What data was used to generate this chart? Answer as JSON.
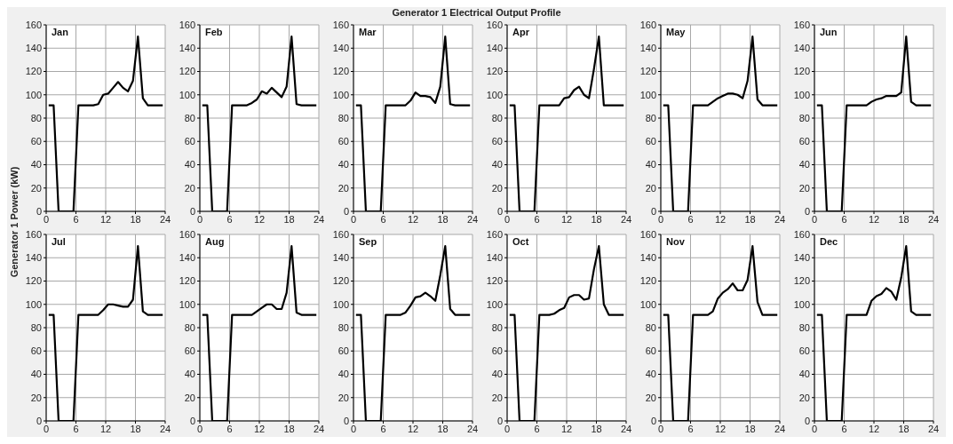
{
  "chart_data": [
    {
      "type": "line",
      "title": "Jan",
      "annotations": [
        "Generator 1 Electrical Output Profile"
      ],
      "ylabel": "Generator 1 Power (kW)",
      "x": [
        0.5,
        1.5,
        2.5,
        3.5,
        4.5,
        5.5,
        6.5,
        7.5,
        8.5,
        9.5,
        10.5,
        11.5,
        12.5,
        13.5,
        14.5,
        15.5,
        16.5,
        17.5,
        18.5,
        19.5,
        20.5,
        21.5,
        22.5,
        23.5
      ],
      "values": [
        91,
        91,
        0,
        0,
        0,
        0,
        91,
        91,
        91,
        91,
        92,
        100,
        101,
        106,
        111,
        106,
        103,
        112,
        150,
        97,
        91,
        91,
        91,
        91
      ],
      "color": "#000000",
      "xlim": [
        0,
        24
      ],
      "xticks": [
        0,
        6,
        12,
        18,
        24
      ],
      "ylim": [
        0,
        160
      ],
      "yticks": [
        0,
        20,
        40,
        60,
        80,
        100,
        120,
        140,
        160
      ],
      "grid": true
    },
    {
      "type": "line",
      "title": "Feb",
      "x": [
        0.5,
        1.5,
        2.5,
        3.5,
        4.5,
        5.5,
        6.5,
        7.5,
        8.5,
        9.5,
        10.5,
        11.5,
        12.5,
        13.5,
        14.5,
        15.5,
        16.5,
        17.5,
        18.5,
        19.5,
        20.5,
        21.5,
        22.5,
        23.5
      ],
      "values": [
        91,
        91,
        0,
        0,
        0,
        0,
        91,
        91,
        91,
        91,
        93,
        96,
        103,
        101,
        106,
        102,
        98,
        107,
        150,
        92,
        91,
        91,
        91,
        91
      ],
      "color": "#000000",
      "xlim": [
        0,
        24
      ],
      "xticks": [
        0,
        6,
        12,
        18,
        24
      ],
      "ylim": [
        0,
        160
      ],
      "yticks": [
        0,
        20,
        40,
        60,
        80,
        100,
        120,
        140,
        160
      ],
      "grid": true
    },
    {
      "type": "line",
      "title": "Mar",
      "x": [
        0.5,
        1.5,
        2.5,
        3.5,
        4.5,
        5.5,
        6.5,
        7.5,
        8.5,
        9.5,
        10.5,
        11.5,
        12.5,
        13.5,
        14.5,
        15.5,
        16.5,
        17.5,
        18.5,
        19.5,
        20.5,
        21.5,
        22.5,
        23.5
      ],
      "values": [
        91,
        91,
        0,
        0,
        0,
        0,
        91,
        91,
        91,
        91,
        91,
        95,
        102,
        99,
        99,
        98,
        93,
        107,
        150,
        92,
        91,
        91,
        91,
        91
      ],
      "color": "#000000",
      "xlim": [
        0,
        24
      ],
      "xticks": [
        0,
        6,
        12,
        18,
        24
      ],
      "ylim": [
        0,
        160
      ],
      "yticks": [
        0,
        20,
        40,
        60,
        80,
        100,
        120,
        140,
        160
      ],
      "grid": true
    },
    {
      "type": "line",
      "title": "Apr",
      "x": [
        0.5,
        1.5,
        2.5,
        3.5,
        4.5,
        5.5,
        6.5,
        7.5,
        8.5,
        9.5,
        10.5,
        11.5,
        12.5,
        13.5,
        14.5,
        15.5,
        16.5,
        17.5,
        18.5,
        19.5,
        20.5,
        21.5,
        22.5,
        23.5
      ],
      "values": [
        91,
        91,
        0,
        0,
        0,
        0,
        91,
        91,
        91,
        91,
        91,
        97,
        98,
        104,
        107,
        100,
        97,
        122,
        150,
        91,
        91,
        91,
        91,
        91
      ],
      "color": "#000000",
      "xlim": [
        0,
        24
      ],
      "xticks": [
        0,
        6,
        12,
        18,
        24
      ],
      "ylim": [
        0,
        160
      ],
      "yticks": [
        0,
        20,
        40,
        60,
        80,
        100,
        120,
        140,
        160
      ],
      "grid": true
    },
    {
      "type": "line",
      "title": "May",
      "x": [
        0.5,
        1.5,
        2.5,
        3.5,
        4.5,
        5.5,
        6.5,
        7.5,
        8.5,
        9.5,
        10.5,
        11.5,
        12.5,
        13.5,
        14.5,
        15.5,
        16.5,
        17.5,
        18.5,
        19.5,
        20.5,
        21.5,
        22.5,
        23.5
      ],
      "values": [
        91,
        91,
        0,
        0,
        0,
        0,
        91,
        91,
        91,
        91,
        94,
        97,
        99,
        101,
        101,
        100,
        97,
        112,
        150,
        96,
        91,
        91,
        91,
        91
      ],
      "color": "#000000",
      "xlim": [
        0,
        24
      ],
      "xticks": [
        0,
        6,
        12,
        18,
        24
      ],
      "ylim": [
        0,
        160
      ],
      "yticks": [
        0,
        20,
        40,
        60,
        80,
        100,
        120,
        140,
        160
      ],
      "grid": true
    },
    {
      "type": "line",
      "title": "Jun",
      "x": [
        0.5,
        1.5,
        2.5,
        3.5,
        4.5,
        5.5,
        6.5,
        7.5,
        8.5,
        9.5,
        10.5,
        11.5,
        12.5,
        13.5,
        14.5,
        15.5,
        16.5,
        17.5,
        18.5,
        19.5,
        20.5,
        21.5,
        22.5,
        23.5
      ],
      "values": [
        91,
        91,
        0,
        0,
        0,
        0,
        91,
        91,
        91,
        91,
        91,
        94,
        96,
        97,
        99,
        99,
        99,
        102,
        150,
        94,
        91,
        91,
        91,
        91
      ],
      "color": "#000000",
      "xlim": [
        0,
        24
      ],
      "xticks": [
        0,
        6,
        12,
        18,
        24
      ],
      "ylim": [
        0,
        160
      ],
      "yticks": [
        0,
        20,
        40,
        60,
        80,
        100,
        120,
        140,
        160
      ],
      "grid": true
    },
    {
      "type": "line",
      "title": "Jul",
      "x": [
        0.5,
        1.5,
        2.5,
        3.5,
        4.5,
        5.5,
        6.5,
        7.5,
        8.5,
        9.5,
        10.5,
        11.5,
        12.5,
        13.5,
        14.5,
        15.5,
        16.5,
        17.5,
        18.5,
        19.5,
        20.5,
        21.5,
        22.5,
        23.5
      ],
      "values": [
        91,
        91,
        0,
        0,
        0,
        0,
        91,
        91,
        91,
        91,
        91,
        95,
        100,
        100,
        99,
        98,
        98,
        104,
        150,
        94,
        91,
        91,
        91,
        91
      ],
      "color": "#000000",
      "xlim": [
        0,
        24
      ],
      "xticks": [
        0,
        6,
        12,
        18,
        24
      ],
      "ylim": [
        0,
        160
      ],
      "yticks": [
        0,
        20,
        40,
        60,
        80,
        100,
        120,
        140,
        160
      ],
      "grid": true
    },
    {
      "type": "line",
      "title": "Aug",
      "x": [
        0.5,
        1.5,
        2.5,
        3.5,
        4.5,
        5.5,
        6.5,
        7.5,
        8.5,
        9.5,
        10.5,
        11.5,
        12.5,
        13.5,
        14.5,
        15.5,
        16.5,
        17.5,
        18.5,
        19.5,
        20.5,
        21.5,
        22.5,
        23.5
      ],
      "values": [
        91,
        91,
        0,
        0,
        0,
        0,
        91,
        91,
        91,
        91,
        91,
        94,
        97,
        100,
        100,
        96,
        96,
        110,
        150,
        93,
        91,
        91,
        91,
        91
      ],
      "color": "#000000",
      "xlim": [
        0,
        24
      ],
      "xticks": [
        0,
        6,
        12,
        18,
        24
      ],
      "ylim": [
        0,
        160
      ],
      "yticks": [
        0,
        20,
        40,
        60,
        80,
        100,
        120,
        140,
        160
      ],
      "grid": true
    },
    {
      "type": "line",
      "title": "Sep",
      "x": [
        0.5,
        1.5,
        2.5,
        3.5,
        4.5,
        5.5,
        6.5,
        7.5,
        8.5,
        9.5,
        10.5,
        11.5,
        12.5,
        13.5,
        14.5,
        15.5,
        16.5,
        17.5,
        18.5,
        19.5,
        20.5,
        21.5,
        22.5,
        23.5
      ],
      "values": [
        91,
        91,
        0,
        0,
        0,
        0,
        91,
        91,
        91,
        91,
        93,
        99,
        106,
        107,
        110,
        107,
        103,
        125,
        150,
        96,
        91,
        91,
        91,
        91
      ],
      "color": "#000000",
      "xlim": [
        0,
        24
      ],
      "xticks": [
        0,
        6,
        12,
        18,
        24
      ],
      "ylim": [
        0,
        160
      ],
      "yticks": [
        0,
        20,
        40,
        60,
        80,
        100,
        120,
        140,
        160
      ],
      "grid": true
    },
    {
      "type": "line",
      "title": "Oct",
      "x": [
        0.5,
        1.5,
        2.5,
        3.5,
        4.5,
        5.5,
        6.5,
        7.5,
        8.5,
        9.5,
        10.5,
        11.5,
        12.5,
        13.5,
        14.5,
        15.5,
        16.5,
        17.5,
        18.5,
        19.5,
        20.5,
        21.5,
        22.5,
        23.5
      ],
      "values": [
        91,
        91,
        0,
        0,
        0,
        0,
        91,
        91,
        91,
        92,
        95,
        97,
        106,
        108,
        108,
        104,
        105,
        130,
        150,
        100,
        91,
        91,
        91,
        91
      ],
      "color": "#000000",
      "xlim": [
        0,
        24
      ],
      "xticks": [
        0,
        6,
        12,
        18,
        24
      ],
      "ylim": [
        0,
        160
      ],
      "yticks": [
        0,
        20,
        40,
        60,
        80,
        100,
        120,
        140,
        160
      ],
      "grid": true
    },
    {
      "type": "line",
      "title": "Nov",
      "x": [
        0.5,
        1.5,
        2.5,
        3.5,
        4.5,
        5.5,
        6.5,
        7.5,
        8.5,
        9.5,
        10.5,
        11.5,
        12.5,
        13.5,
        14.5,
        15.5,
        16.5,
        17.5,
        18.5,
        19.5,
        20.5,
        21.5,
        22.5,
        23.5
      ],
      "values": [
        91,
        91,
        0,
        0,
        0,
        0,
        91,
        91,
        91,
        91,
        94,
        105,
        110,
        113,
        118,
        112,
        112,
        121,
        150,
        102,
        91,
        91,
        91,
        91
      ],
      "color": "#000000",
      "xlim": [
        0,
        24
      ],
      "xticks": [
        0,
        6,
        12,
        18,
        24
      ],
      "ylim": [
        0,
        160
      ],
      "yticks": [
        0,
        20,
        40,
        60,
        80,
        100,
        120,
        140,
        160
      ],
      "grid": true
    },
    {
      "type": "line",
      "title": "Dec",
      "x": [
        0.5,
        1.5,
        2.5,
        3.5,
        4.5,
        5.5,
        6.5,
        7.5,
        8.5,
        9.5,
        10.5,
        11.5,
        12.5,
        13.5,
        14.5,
        15.5,
        16.5,
        17.5,
        18.5,
        19.5,
        20.5,
        21.5,
        22.5,
        23.5
      ],
      "values": [
        91,
        91,
        0,
        0,
        0,
        0,
        91,
        91,
        91,
        91,
        91,
        103,
        107,
        109,
        114,
        111,
        104,
        123,
        150,
        94,
        91,
        91,
        91,
        91
      ],
      "color": "#000000",
      "xlim": [
        0,
        24
      ],
      "xticks": [
        0,
        6,
        12,
        18,
        24
      ],
      "ylim": [
        0,
        160
      ],
      "yticks": [
        0,
        20,
        40,
        60,
        80,
        100,
        120,
        140,
        160
      ],
      "grid": true
    }
  ]
}
